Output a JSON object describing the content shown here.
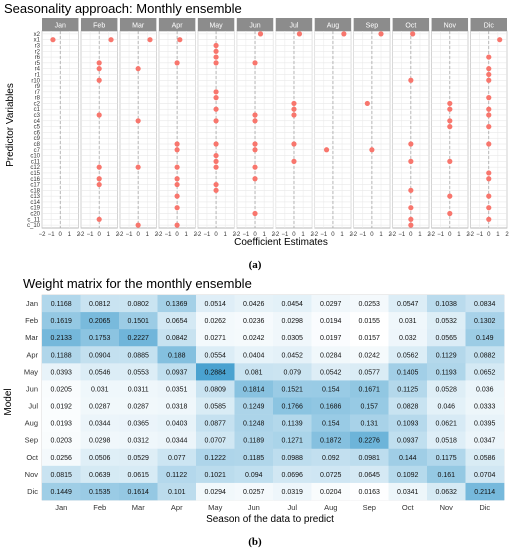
{
  "chart_data": [
    {
      "type": "scatter",
      "title": "Seasonality approach: Monthly ensemble",
      "xlabel": "Coefficient Estimates",
      "ylabel": "Predictor Variables",
      "panels": [
        "Jan",
        "Feb",
        "Mar",
        "Apr",
        "May",
        "Jun",
        "Jul",
        "Aug",
        "Sep",
        "Oct",
        "Nov",
        "Dic"
      ],
      "x_ticks": [
        "−2",
        "−1",
        "0",
        "1",
        "2"
      ],
      "xlim": [
        -2,
        2
      ],
      "zero_line": true,
      "predictors": [
        "x2",
        "x1",
        "r3",
        "r2",
        "r6",
        "r5",
        "r4",
        "r1",
        "r10",
        "r9",
        "r7",
        "r8",
        "c2",
        "c1",
        "c3",
        "c4",
        "c5",
        "c6",
        "c9",
        "c8",
        "c7",
        "c10",
        "c11",
        "c12",
        "c15",
        "c16",
        "c17",
        "c18",
        "c13",
        "c14",
        "c19",
        "c20",
        "c_11",
        "c_10"
      ],
      "predictor_labels": [
        "x2",
        "x1",
        "r3",
        "r2",
        "r6",
        "r5",
        "r4",
        "r1",
        "r10",
        "r9",
        "r7",
        "r8",
        "c2",
        "c1",
        "c3",
        "c4",
        "c5",
        "c6",
        "c9",
        "c8",
        "c7",
        "c10",
        "c11",
        "c12",
        "c15",
        "c16",
        "c17",
        "c18",
        "c13",
        "c14",
        "c19",
        "c20",
        "c_11",
        "c_10"
      ],
      "point_color": "#f8766d",
      "panels_points": [
        [
          {
            "row": 1,
            "x": -0.8
          }
        ],
        [
          {
            "row": 1,
            "x": 1.3
          },
          {
            "row": 5,
            "x": 0
          },
          {
            "row": 6,
            "x": 0
          },
          {
            "row": 8,
            "x": 0
          },
          {
            "row": 14,
            "x": 0
          },
          {
            "row": 23,
            "x": 0
          },
          {
            "row": 25,
            "x": 0
          },
          {
            "row": 26,
            "x": 0
          },
          {
            "row": 32,
            "x": 0
          }
        ],
        [
          {
            "row": 1,
            "x": 1.3
          },
          {
            "row": 6,
            "x": 0
          },
          {
            "row": 15,
            "x": 0
          },
          {
            "row": 23,
            "x": 0
          },
          {
            "row": 33,
            "x": 0
          }
        ],
        [
          {
            "row": 1,
            "x": 0.3
          },
          {
            "row": 5,
            "x": 0
          },
          {
            "row": 19,
            "x": 0
          },
          {
            "row": 20,
            "x": 0
          },
          {
            "row": 23,
            "x": 0
          },
          {
            "row": 25,
            "x": 0
          },
          {
            "row": 26,
            "x": 0
          },
          {
            "row": 28,
            "x": 0
          },
          {
            "row": 30,
            "x": 0
          },
          {
            "row": 33,
            "x": 0
          }
        ],
        [
          {
            "row": 2,
            "x": 0
          },
          {
            "row": 3,
            "x": 0
          },
          {
            "row": 4,
            "x": 0
          },
          {
            "row": 5,
            "x": 0
          },
          {
            "row": 10,
            "x": 0
          },
          {
            "row": 11,
            "x": 0
          },
          {
            "row": 13,
            "x": 0
          },
          {
            "row": 15,
            "x": 0
          },
          {
            "row": 19,
            "x": 0
          },
          {
            "row": 21,
            "x": 0
          },
          {
            "row": 22,
            "x": 0
          },
          {
            "row": 23,
            "x": 0
          },
          {
            "row": 26,
            "x": 0
          },
          {
            "row": 27,
            "x": 0
          }
        ],
        [
          {
            "row": 0,
            "x": 0.6
          },
          {
            "row": 5,
            "x": 0
          },
          {
            "row": 14,
            "x": 0
          },
          {
            "row": 15,
            "x": 0
          },
          {
            "row": 19,
            "x": 0
          },
          {
            "row": 20,
            "x": 0
          },
          {
            "row": 23,
            "x": 0
          },
          {
            "row": 25,
            "x": 0
          },
          {
            "row": 31,
            "x": 0
          }
        ],
        [
          {
            "row": 0,
            "x": 0.6
          },
          {
            "row": 12,
            "x": 0
          },
          {
            "row": 13,
            "x": 0
          },
          {
            "row": 14,
            "x": 0
          },
          {
            "row": 19,
            "x": 0
          },
          {
            "row": 22,
            "x": 0
          }
        ],
        [
          {
            "row": 0,
            "x": 1.2
          },
          {
            "row": 20,
            "x": -0.7
          }
        ],
        [
          {
            "row": 0,
            "x": 1.0
          },
          {
            "row": 12,
            "x": -0.5
          },
          {
            "row": 20,
            "x": 0
          }
        ],
        [
          {
            "row": 0,
            "x": 0.2
          },
          {
            "row": 8,
            "x": 0
          },
          {
            "row": 19,
            "x": 0
          },
          {
            "row": 22,
            "x": 0
          },
          {
            "row": 27,
            "x": 0
          },
          {
            "row": 30,
            "x": 0
          },
          {
            "row": 32,
            "x": 0
          },
          {
            "row": 33,
            "x": 0
          }
        ],
        [
          {
            "row": 12,
            "x": 0
          },
          {
            "row": 13,
            "x": 0
          },
          {
            "row": 15,
            "x": 0
          },
          {
            "row": 16,
            "x": 0
          },
          {
            "row": 22,
            "x": 0
          },
          {
            "row": 28,
            "x": 0
          },
          {
            "row": 31,
            "x": 0
          }
        ],
        [
          {
            "row": 1,
            "x": 1.2
          },
          {
            "row": 4,
            "x": 0
          },
          {
            "row": 6,
            "x": 0
          },
          {
            "row": 7,
            "x": 0
          },
          {
            "row": 8,
            "x": 0
          },
          {
            "row": 11,
            "x": 0
          },
          {
            "row": 13,
            "x": 0
          },
          {
            "row": 14,
            "x": 0
          },
          {
            "row": 16,
            "x": 0
          },
          {
            "row": 19,
            "x": 0
          },
          {
            "row": 24,
            "x": 0
          },
          {
            "row": 25,
            "x": 0
          },
          {
            "row": 28,
            "x": 0
          },
          {
            "row": 30,
            "x": 0
          },
          {
            "row": 32,
            "x": 0
          }
        ]
      ],
      "caption": "(a)"
    },
    {
      "type": "heatmap",
      "title": "Weight matrix for the monthly ensemble",
      "xlabel": "Season of the data to predict",
      "ylabel": "Model",
      "categories": [
        "Jan",
        "Feb",
        "Mar",
        "Apr",
        "May",
        "Jun",
        "Jul",
        "Aug",
        "Sep",
        "Oct",
        "Nov",
        "Dic"
      ],
      "rows": [
        "Jan",
        "Feb",
        "Mar",
        "Apr",
        "May",
        "Jun",
        "Jul",
        "Aug",
        "Sep",
        "Oct",
        "Nov",
        "Dic"
      ],
      "color_low": "#ffffff",
      "color_high": "#4aa2d0",
      "values": [
        [
          "0.1168",
          "0.0812",
          "0.0802",
          "0.1369",
          "0.0514",
          "0.0426",
          "0.0454",
          "0.0297",
          "0.0253",
          "0.0547",
          "0.1038",
          "0.0834"
        ],
        [
          "0.1619",
          "0.2065",
          "0.1501",
          "0.0654",
          "0.0262",
          "0.0236",
          "0.0298",
          "0.0194",
          "0.0155",
          "0.031",
          "0.0532",
          "0.1302"
        ],
        [
          "0.2133",
          "0.1753",
          "0.2227",
          "0.0842",
          "0.0271",
          "0.0242",
          "0.0305",
          "0.0197",
          "0.0157",
          "0.032",
          "0.0565",
          "0.149"
        ],
        [
          "0.1188",
          "0.0904",
          "0.0885",
          "0.188",
          "0.0554",
          "0.0404",
          "0.0452",
          "0.0284",
          "0.0242",
          "0.0562",
          "0.1129",
          "0.0882"
        ],
        [
          "0.0393",
          "0.0546",
          "0.0553",
          "0.0937",
          "0.2884",
          "0.081",
          "0.079",
          "0.0542",
          "0.0577",
          "0.1405",
          "0.1193",
          "0.0652"
        ],
        [
          "0.0205",
          "0.031",
          "0.0311",
          "0.0351",
          "0.0809",
          "0.1814",
          "0.1521",
          "0.154",
          "0.1671",
          "0.1125",
          "0.0528",
          "0.036"
        ],
        [
          "0.0192",
          "0.0287",
          "0.0287",
          "0.0318",
          "0.0585",
          "0.1249",
          "0.1766",
          "0.1686",
          "0.157",
          "0.0828",
          "0.046",
          "0.0333"
        ],
        [
          "0.0193",
          "0.0344",
          "0.0365",
          "0.0403",
          "0.0877",
          "0.1248",
          "0.1139",
          "0.154",
          "0.131",
          "0.1093",
          "0.0621",
          "0.0395"
        ],
        [
          "0.0203",
          "0.0298",
          "0.0312",
          "0.0344",
          "0.0707",
          "0.1189",
          "0.1271",
          "0.1872",
          "0.2276",
          "0.0937",
          "0.0518",
          "0.0347"
        ],
        [
          "0.0256",
          "0.0506",
          "0.0529",
          "0.077",
          "0.1222",
          "0.1185",
          "0.0988",
          "0.092",
          "0.0981",
          "0.144",
          "0.1175",
          "0.0586"
        ],
        [
          "0.0815",
          "0.0639",
          "0.0615",
          "0.1122",
          "0.1021",
          "0.094",
          "0.0696",
          "0.0725",
          "0.0645",
          "0.1092",
          "0.161",
          "0.0704"
        ],
        [
          "0.1449",
          "0.1535",
          "0.1614",
          "0.101",
          "0.0294",
          "0.0257",
          "0.0319",
          "0.0204",
          "0.0163",
          "0.0341",
          "0.0632",
          "0.2114"
        ]
      ],
      "caption": "(b)"
    }
  ]
}
